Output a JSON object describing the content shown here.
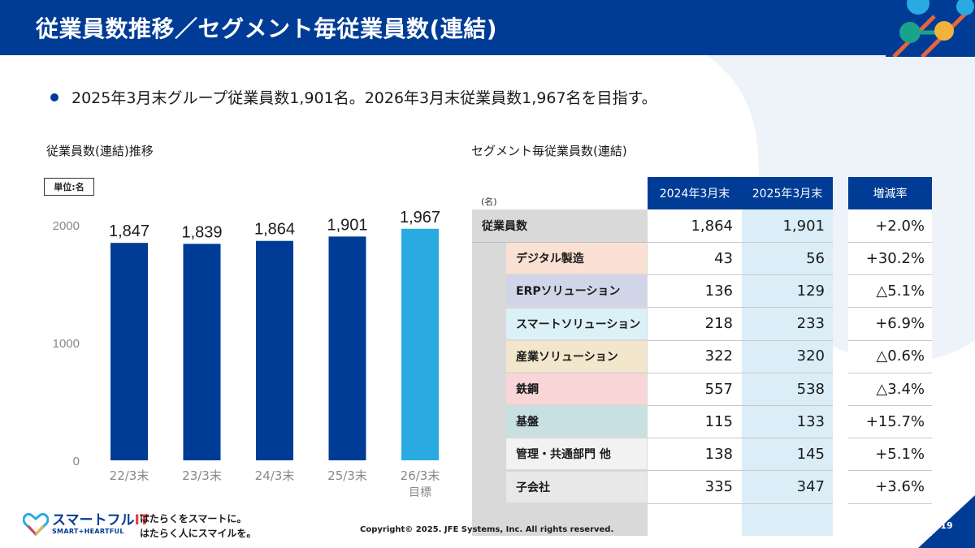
{
  "header": {
    "title": "従業員数推移／セグメント毎従業員数(連結)"
  },
  "bullet": "2025年3月末グループ従業員数1,901名。2026年3月末従業員数1,967名を目指す。",
  "left_panel": {
    "title": "従業員数(連結)推移",
    "unit": "単位:名"
  },
  "chart_data": {
    "type": "bar",
    "title": "従業員数(連結)推移",
    "categories": [
      "22/3末",
      "23/3末",
      "24/3末",
      "25/3末",
      "26/3末"
    ],
    "sub_labels": [
      "",
      "",
      "",
      "",
      "目標"
    ],
    "values": [
      1847,
      1839,
      1864,
      1901,
      1967
    ],
    "value_labels": [
      "1,847",
      "1,839",
      "1,864",
      "1,901",
      "1,967"
    ],
    "bar_colors": [
      "#003c96",
      "#003c96",
      "#003c96",
      "#003c96",
      "#29abe2"
    ],
    "ylim": [
      0,
      2000
    ],
    "yticks": [
      0,
      1000,
      2000
    ],
    "xlabel": "",
    "ylabel": "",
    "unit": "単位:名"
  },
  "right_panel": {
    "title": "セグメント毎従業員数(連結)",
    "unit_note": "(名)",
    "headers": {
      "y2024": "2024年3月末",
      "y2025": "2025年3月末",
      "rate": "増減率"
    },
    "rows": [
      {
        "label": "従業員数",
        "v2024": "1,864",
        "v2025": "1,901",
        "rate": "+2.0%",
        "color": ""
      },
      {
        "label": "デジタル製造",
        "v2024": "43",
        "v2025": "56",
        "rate": "+30.2%",
        "color": "#fbe1d3"
      },
      {
        "label": "ERPソリューション",
        "v2024": "136",
        "v2025": "129",
        "rate": "△5.1%",
        "color": "#d0d6e8"
      },
      {
        "label": "スマートソリューション",
        "v2024": "218",
        "v2025": "233",
        "rate": "+6.9%",
        "color": "#dcf0f8"
      },
      {
        "label": "産業ソリューション",
        "v2024": "322",
        "v2025": "320",
        "rate": "△0.6%",
        "color": "#f2e6cc"
      },
      {
        "label": "鉄鋼",
        "v2024": "557",
        "v2025": "538",
        "rate": "△3.4%",
        "color": "#f9d5d8"
      },
      {
        "label": "基盤",
        "v2024": "115",
        "v2025": "133",
        "rate": "+15.7%",
        "color": "#c9e0e3"
      },
      {
        "label": "管理・共通部門 他",
        "v2024": "138",
        "v2025": "145",
        "rate": "+5.1%",
        "color": "#f2f2f2"
      },
      {
        "label": "子会社",
        "v2024": "335",
        "v2025": "347",
        "rate": "+3.6%",
        "color": "#e8e8e8"
      }
    ]
  },
  "footer": {
    "logo_main": "スマートフル",
    "logo_it": "IT",
    "logo_sub": "SMART+HEARTFUL",
    "tagline1": "はたらくをスマートに。",
    "tagline2": "はたらく人にスマイルを。",
    "copyright": "Copyright© 2025. JFE Systems, Inc. All rights reserved.",
    "page": "19"
  },
  "colors": {
    "primary": "#003c96",
    "accent": "#29abe2",
    "highlight_col": "#dbeef8"
  }
}
